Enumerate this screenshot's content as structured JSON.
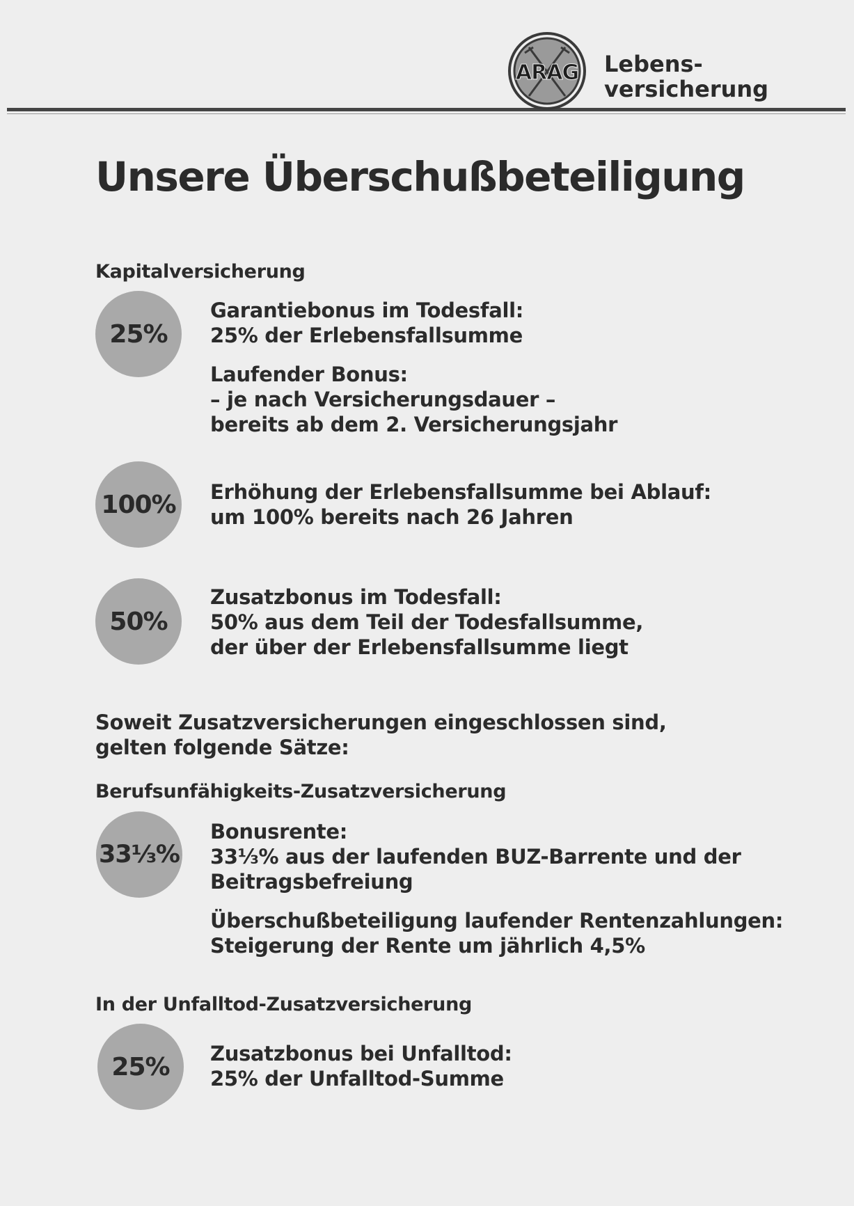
{
  "header": {
    "logo_text": "ARAG",
    "brand_line1": "Lebens-",
    "brand_line2": "versicherung"
  },
  "title": "Unsere Überschußbeteiligung",
  "kapital": {
    "heading": "Kapitalversicherung",
    "items": [
      {
        "badge": "25%",
        "lines": [
          "Garantiebonus im Todesfall:",
          "25% der Erlebensfallsumme"
        ],
        "extra_lines": [
          "Laufender Bonus:",
          "– je nach Versicherungsdauer –",
          "bereits ab dem 2. Versicherungsjahr"
        ]
      },
      {
        "badge": "100%",
        "lines": [
          "Erhöhung der Erlebensfallsumme bei Ablauf:",
          "um 100% bereits nach 26 Jahren"
        ]
      },
      {
        "badge": "50%",
        "lines": [
          "Zusatzbonus im Todesfall:",
          "50% aus dem Teil der Todesfallsumme,",
          "der über der Erlebensfallsumme liegt"
        ]
      }
    ]
  },
  "note": {
    "line1": "Soweit Zusatzversicherungen eingeschlossen sind,",
    "line2": "gelten folgende Sätze:"
  },
  "buz": {
    "heading": "Berufsunfähigkeits-Zusatzversicherung",
    "badge": "33⅓%",
    "lines": [
      "Bonusrente:",
      "33⅓% aus der laufenden BUZ-Barrente und der",
      "Beitragsbefreiung"
    ],
    "extra_lines": [
      "Überschußbeteiligung laufender Rentenzahlungen:",
      "Steigerung der Rente um jährlich 4,5%"
    ]
  },
  "unfall": {
    "heading": "In der Unfalltod-Zusatzversicherung",
    "badge": "25%",
    "lines": [
      "Zusatzbonus bei Unfalltod:",
      "25% der Unfalltod-Summe"
    ]
  },
  "colors": {
    "paper": "#eeeeee",
    "badge": "#a9a9a9",
    "text": "#2b2b2b"
  }
}
